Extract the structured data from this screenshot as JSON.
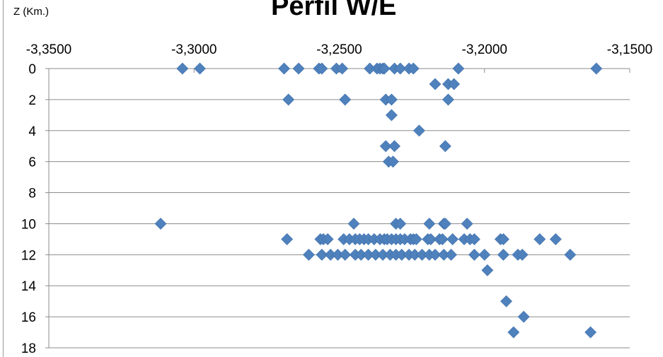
{
  "chart_data": {
    "type": "scatter",
    "title": "Perfil W/E",
    "ylabel": "Z (Km.)",
    "xlabel": "",
    "x_axis_position": "top",
    "y_axis_inverted": true,
    "xlim": [
      -3.35,
      -3.15
    ],
    "ylim": [
      0,
      18
    ],
    "x_ticks": [
      -3.35,
      -3.3,
      -3.25,
      -3.2,
      -3.15
    ],
    "x_tick_labels": [
      "-3,3500",
      "-3,3000",
      "-3,2500",
      "-3,2000",
      "-3,1500"
    ],
    "y_ticks": [
      0,
      2,
      4,
      6,
      8,
      10,
      12,
      14,
      16,
      18
    ],
    "y_tick_labels": [
      "0",
      "2",
      "4",
      "6",
      "8",
      "10",
      "12",
      "14",
      "16",
      "18"
    ],
    "grid": "horizontal",
    "marker": "diamond",
    "marker_color": "#4f81bd",
    "points": [
      [
        -3.304,
        0
      ],
      [
        -3.298,
        0
      ],
      [
        -3.269,
        0
      ],
      [
        -3.264,
        0
      ],
      [
        -3.257,
        0
      ],
      [
        -3.256,
        0
      ],
      [
        -3.251,
        0
      ],
      [
        -3.249,
        0
      ],
      [
        -3.2395,
        0
      ],
      [
        -3.237,
        0
      ],
      [
        -3.236,
        0
      ],
      [
        -3.235,
        0
      ],
      [
        -3.2345,
        0
      ],
      [
        -3.231,
        0
      ],
      [
        -3.229,
        0
      ],
      [
        -3.226,
        0
      ],
      [
        -3.2245,
        0
      ],
      [
        -3.209,
        0
      ],
      [
        -3.1615,
        0
      ],
      [
        -3.217,
        1
      ],
      [
        -3.2125,
        1
      ],
      [
        -3.2105,
        1
      ],
      [
        -3.2675,
        2
      ],
      [
        -3.248,
        2
      ],
      [
        -3.234,
        2
      ],
      [
        -3.232,
        2
      ],
      [
        -3.2125,
        2
      ],
      [
        -3.232,
        3
      ],
      [
        -3.2225,
        4
      ],
      [
        -3.234,
        5
      ],
      [
        -3.231,
        5
      ],
      [
        -3.2135,
        5
      ],
      [
        -3.233,
        6
      ],
      [
        -3.2315,
        6
      ],
      [
        -3.3115,
        10
      ],
      [
        -3.245,
        10
      ],
      [
        -3.2305,
        10
      ],
      [
        -3.229,
        10
      ],
      [
        -3.219,
        10
      ],
      [
        -3.214,
        10
      ],
      [
        -3.2135,
        10
      ],
      [
        -3.206,
        10
      ],
      [
        -3.268,
        11
      ],
      [
        -3.2565,
        11
      ],
      [
        -3.2555,
        11
      ],
      [
        -3.254,
        11
      ],
      [
        -3.2485,
        11
      ],
      [
        -3.2465,
        11
      ],
      [
        -3.2445,
        11
      ],
      [
        -3.243,
        11
      ],
      [
        -3.2415,
        11
      ],
      [
        -3.24,
        11
      ],
      [
        -3.238,
        11
      ],
      [
        -3.236,
        11
      ],
      [
        -3.2345,
        11
      ],
      [
        -3.2335,
        11
      ],
      [
        -3.232,
        11
      ],
      [
        -3.2305,
        11
      ],
      [
        -3.229,
        11
      ],
      [
        -3.2275,
        11
      ],
      [
        -3.2255,
        11
      ],
      [
        -3.2245,
        11
      ],
      [
        -3.2235,
        11
      ],
      [
        -3.2195,
        11
      ],
      [
        -3.2185,
        11
      ],
      [
        -3.2155,
        11
      ],
      [
        -3.2145,
        11
      ],
      [
        -3.211,
        11
      ],
      [
        -3.207,
        11
      ],
      [
        -3.205,
        11
      ],
      [
        -3.2035,
        11
      ],
      [
        -3.1945,
        11
      ],
      [
        -3.1935,
        11
      ],
      [
        -3.181,
        11
      ],
      [
        -3.1755,
        11
      ],
      [
        -3.2605,
        12
      ],
      [
        -3.256,
        12
      ],
      [
        -3.253,
        12
      ],
      [
        -3.2505,
        12
      ],
      [
        -3.248,
        12
      ],
      [
        -3.2445,
        12
      ],
      [
        -3.2425,
        12
      ],
      [
        -3.24,
        12
      ],
      [
        -3.2375,
        12
      ],
      [
        -3.235,
        12
      ],
      [
        -3.2325,
        12
      ],
      [
        -3.2305,
        12
      ],
      [
        -3.2285,
        12
      ],
      [
        -3.226,
        12
      ],
      [
        -3.224,
        12
      ],
      [
        -3.2215,
        12
      ],
      [
        -3.219,
        12
      ],
      [
        -3.217,
        12
      ],
      [
        -3.214,
        12
      ],
      [
        -3.2115,
        12
      ],
      [
        -3.2035,
        12
      ],
      [
        -3.2,
        12
      ],
      [
        -3.1935,
        12
      ],
      [
        -3.1885,
        12
      ],
      [
        -3.187,
        12
      ],
      [
        -3.1705,
        12
      ],
      [
        -3.199,
        13
      ],
      [
        -3.1925,
        15
      ],
      [
        -3.1865,
        16
      ],
      [
        -3.19,
        17
      ],
      [
        -3.1635,
        17
      ]
    ]
  }
}
